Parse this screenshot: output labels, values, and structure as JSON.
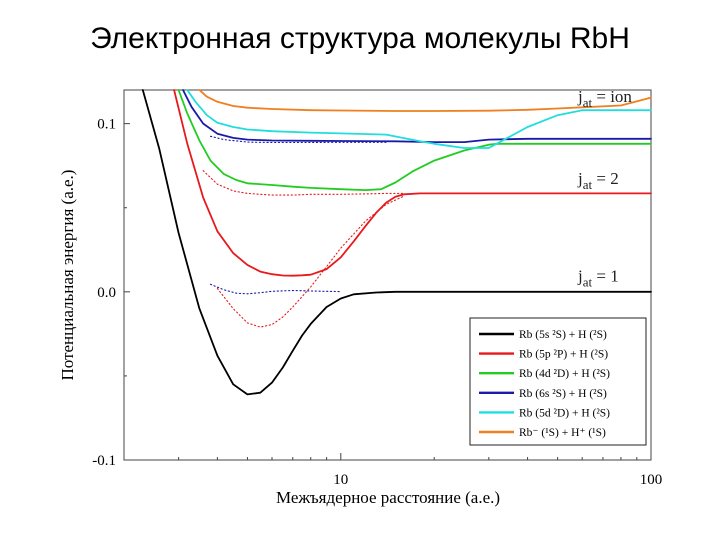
{
  "slide": {
    "title": "Электронная структура молекулы RbH"
  },
  "chart_data": {
    "type": "line",
    "xscale": "log",
    "xlim": [
      2,
      100
    ],
    "ylim": [
      -0.1,
      0.12
    ],
    "xlabel": "Межъядерное расстояние (а.е.)",
    "ylabel": "Потенциальная энергия (а.е.)",
    "xticks": [
      10,
      100
    ],
    "xtick_labels": [
      "10",
      "100"
    ],
    "yticks": [
      -0.1,
      0.0,
      0.1
    ],
    "ytick_labels": [
      "-0.1",
      "0.0",
      "0.1"
    ],
    "annotations": [
      {
        "text_main": "j",
        "text_sub": "at",
        "text_rest": " = ion",
        "y": 0.113
      },
      {
        "text_main": "j",
        "text_sub": "at",
        "text_rest": " = 2",
        "y": 0.064
      },
      {
        "text_main": "j",
        "text_sub": "at",
        "text_rest": " = 1",
        "y": 0.006
      }
    ],
    "legend": {
      "placement": "bottom-right",
      "entries": [
        {
          "color": "#000000",
          "label": "Rb (5s ²S) + H (²S)"
        },
        {
          "color": "#e8191c",
          "label": "Rb (5p ²P) + H (²S)"
        },
        {
          "color": "#22cc22",
          "label": "Rb (4d ²D) + H (²S)"
        },
        {
          "color": "#1a1aaa",
          "label": "Rb (6s ²S) + H (²S)"
        },
        {
          "color": "#22dddd",
          "label": "Rb (5d ²D) + H (²S)"
        },
        {
          "color": "#f07f1f",
          "label": "Rb⁻ (¹S) + H⁺ (¹S)"
        }
      ]
    },
    "series": [
      {
        "name": "Rb (5s ²S) + H (²S)",
        "color": "#000000",
        "style": "solid",
        "x": [
          2.3,
          2.6,
          3.0,
          3.5,
          4.0,
          4.5,
          5.0,
          5.5,
          6.0,
          6.5,
          7.0,
          7.5,
          8.0,
          9.0,
          10.0,
          11.0,
          13.0,
          15.0,
          20.0,
          30.0,
          50.0,
          100.0
        ],
        "y": [
          0.12,
          0.085,
          0.035,
          -0.01,
          -0.038,
          -0.055,
          -0.061,
          -0.06,
          -0.054,
          -0.045,
          -0.035,
          -0.026,
          -0.019,
          -0.009,
          -0.004,
          -0.0015,
          -0.0004,
          0.0,
          0.0,
          0.0,
          0.0,
          0.0
        ]
      },
      {
        "name": "Rb (5p ²P) + H (²S)",
        "color": "#e8191c",
        "style": "solid",
        "x": [
          2.9,
          3.2,
          3.6,
          4.0,
          4.5,
          5.0,
          5.5,
          6.0,
          6.5,
          7.0,
          7.5,
          8.0,
          9.0,
          10.0,
          11.0,
          12.0,
          13.0,
          14.0,
          15.0,
          16.0,
          18.0,
          20.0,
          30.0,
          50.0,
          100.0
        ],
        "y": [
          0.12,
          0.088,
          0.056,
          0.036,
          0.023,
          0.016,
          0.012,
          0.0105,
          0.0097,
          0.0096,
          0.0098,
          0.0102,
          0.0135,
          0.0205,
          0.03,
          0.039,
          0.047,
          0.053,
          0.0565,
          0.058,
          0.0585,
          0.0585,
          0.0585,
          0.0585,
          0.0585
        ]
      },
      {
        "name": "Rb (4d ²D) + H (²S)",
        "color": "#22cc22",
        "style": "solid",
        "x": [
          3.0,
          3.2,
          3.5,
          3.8,
          4.2,
          4.6,
          5.0,
          6.0,
          7.0,
          8.0,
          10.0,
          12.0,
          13.5,
          15.0,
          17.0,
          20.0,
          25.0,
          30.0,
          32.0,
          40.0,
          60.0,
          100.0
        ],
        "y": [
          0.12,
          0.106,
          0.09,
          0.078,
          0.07,
          0.0665,
          0.0645,
          0.0635,
          0.0625,
          0.0618,
          0.061,
          0.0605,
          0.061,
          0.065,
          0.0715,
          0.078,
          0.084,
          0.0875,
          0.088,
          0.088,
          0.088,
          0.088
        ]
      },
      {
        "name": "Rb (6s ²S) + H (²S)",
        "color": "#1a1aaa",
        "style": "solid",
        "x": [
          3.1,
          3.3,
          3.6,
          4.0,
          4.5,
          5.0,
          6.0,
          8.0,
          10.0,
          15.0,
          20.0,
          25.0,
          30.0,
          40.0,
          60.0,
          100.0
        ],
        "y": [
          0.12,
          0.11,
          0.1,
          0.094,
          0.0915,
          0.0905,
          0.09,
          0.0898,
          0.0897,
          0.0895,
          0.089,
          0.089,
          0.0905,
          0.091,
          0.091,
          0.091
        ]
      },
      {
        "name": "Rb (5d ²D) + H (²S)",
        "color": "#22dddd",
        "style": "solid",
        "x": [
          3.2,
          3.4,
          3.7,
          4.0,
          4.5,
          5.0,
          6.0,
          8.0,
          10.0,
          14.0,
          18.0,
          20.0,
          25.0,
          30.0,
          40.0,
          50.0,
          60.0,
          100.0
        ],
        "y": [
          0.12,
          0.113,
          0.105,
          0.1005,
          0.098,
          0.0965,
          0.0955,
          0.0947,
          0.0942,
          0.0935,
          0.0895,
          0.088,
          0.0855,
          0.0855,
          0.098,
          0.105,
          0.108,
          0.108
        ]
      },
      {
        "name": "Rb⁻ (¹S) + H⁺ (¹S)",
        "color": "#f07f1f",
        "style": "solid",
        "x": [
          3.5,
          3.7,
          4.0,
          4.5,
          5.0,
          6.0,
          8.0,
          10.0,
          15.0,
          20.0,
          30.0,
          40.0,
          50.0,
          60.0,
          80.0,
          100.0
        ],
        "y": [
          0.12,
          0.116,
          0.113,
          0.1105,
          0.1095,
          0.1087,
          0.108,
          0.1078,
          0.1075,
          0.1075,
          0.1077,
          0.1082,
          0.109,
          0.1097,
          0.1108,
          0.1155
        ]
      },
      {
        "name": "diabatic (dotted) 1",
        "color": "#e8191c",
        "style": "dotted",
        "x": [
          4.0,
          4.5,
          5.0,
          5.5,
          6.0,
          6.5,
          7.0,
          8.0,
          9.0,
          10.0,
          12.0,
          14.0,
          16.0
        ],
        "y": [
          0.002,
          -0.01,
          -0.0185,
          -0.021,
          -0.0195,
          -0.015,
          -0.009,
          0.003,
          0.015,
          0.026,
          0.042,
          0.052,
          0.057
        ]
      },
      {
        "name": "diabatic (dotted) 2",
        "color": "#1a1aaa",
        "style": "dotted",
        "x": [
          3.8,
          4.2,
          4.6,
          5.0,
          5.5,
          6.0,
          7.0,
          8.0,
          10.0
        ],
        "y": [
          0.0045,
          0.0012,
          -0.0008,
          -0.0012,
          -0.0005,
          0.0003,
          0.0008,
          0.0005,
          0.0001
        ]
      },
      {
        "name": "diabatic (dotted) 3",
        "color": "#e8191c",
        "style": "dotted",
        "x": [
          3.6,
          4.0,
          4.5,
          5.0,
          6.0,
          7.0,
          8.0,
          10.0,
          12.0,
          14.0,
          16.0
        ],
        "y": [
          0.072,
          0.064,
          0.06,
          0.0585,
          0.0575,
          0.0575,
          0.058,
          0.058,
          0.0582,
          0.0585,
          0.0585
        ]
      },
      {
        "name": "diabatic (dotted) 4",
        "color": "#1a1aaa",
        "style": "dotted",
        "x": [
          3.8,
          4.2,
          5.0,
          6.0,
          8.0,
          10.0,
          14.0
        ],
        "y": [
          0.0925,
          0.0905,
          0.089,
          0.0888,
          0.0888,
          0.0889,
          0.0889
        ]
      }
    ]
  }
}
